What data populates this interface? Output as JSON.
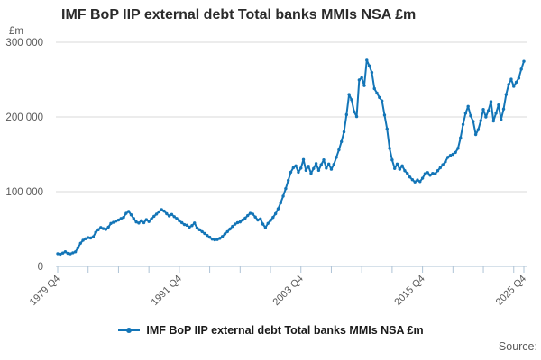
{
  "header": {
    "title": "IMF BoP IIP external debt Total banks MMIs NSA £m"
  },
  "legend": {
    "label": "IMF BoP IIP external debt Total banks MMIs NSA £m"
  },
  "source_label": "Source:",
  "colors": {
    "line": "#1375b7",
    "marker": "#1375b7",
    "grid": "#d9d9d9",
    "axis": "#aec3d6",
    "title_text": "#2b2b2b",
    "tick_text": "#595959",
    "legend_text": "#1a1a1a",
    "source_text": "#595959"
  },
  "chart_data": {
    "type": "line",
    "title": "IMF BoP IIP external debt Total banks MMIs NSA £m",
    "unit_label": "£m",
    "xlabel": "",
    "ylabel": "£m",
    "ylim": [
      0,
      300000
    ],
    "grid": "horizontal",
    "legend_position": "bottom",
    "x_frequency": "quarterly",
    "x_start": "1979 Q4",
    "x_end": "2025 Q4",
    "x_tick_labels": [
      "1979 Q4",
      "1991 Q4",
      "2003 Q4",
      "2015 Q4",
      "2025 Q4"
    ],
    "x_tick_label_indices": [
      0,
      48,
      96,
      144,
      184
    ],
    "minor_tick_every_quarters": 12,
    "y_ticks": [
      0,
      100000,
      200000,
      300000
    ],
    "y_tick_labels": [
      "0",
      "100 000",
      "200 000",
      "300 000"
    ],
    "series_name": "IMF BoP IIP external debt Total banks MMIs NSA £m",
    "values": [
      17000,
      16300,
      17800,
      19600,
      17400,
      16800,
      18200,
      19500,
      25000,
      31000,
      35000,
      37000,
      38500,
      38000,
      39500,
      45500,
      49000,
      52000,
      50500,
      49500,
      52500,
      57500,
      59000,
      60500,
      62000,
      64000,
      65500,
      71000,
      73500,
      69000,
      64000,
      59500,
      58000,
      61000,
      58500,
      62500,
      60000,
      63500,
      67000,
      70000,
      73000,
      76000,
      74000,
      70500,
      67500,
      69500,
      66500,
      64000,
      61000,
      58500,
      56000,
      55000,
      52500,
      54500,
      58000,
      51500,
      49000,
      46500,
      44000,
      41500,
      39000,
      36500,
      35500,
      36000,
      37500,
      40000,
      43500,
      46500,
      50000,
      53500,
      56500,
      58500,
      59500,
      62000,
      64500,
      68000,
      71000,
      70000,
      66000,
      62000,
      63500,
      56500,
      52000,
      57500,
      61500,
      65500,
      70500,
      77000,
      85000,
      94000,
      104000,
      115000,
      126000,
      132000,
      134500,
      126000,
      131500,
      143000,
      128500,
      134000,
      124500,
      131000,
      137500,
      128500,
      136000,
      142500,
      131500,
      137000,
      130000,
      136500,
      146000,
      156000,
      167000,
      180000,
      203000,
      230000,
      223000,
      207000,
      200500,
      249500,
      252500,
      242000,
      276000,
      268500,
      259500,
      238000,
      232000,
      226000,
      221500,
      202500,
      184000,
      158000,
      142500,
      131000,
      137000,
      130000,
      134500,
      128000,
      124500,
      119500,
      116000,
      113000,
      115500,
      113500,
      118000,
      124000,
      125500,
      122000,
      124500,
      124000,
      128000,
      132000,
      136000,
      140000,
      146000,
      148500,
      150000,
      152500,
      158000,
      172000,
      190000,
      205000,
      214000,
      201500,
      194000,
      176500,
      183000,
      195000,
      210000,
      200000,
      208500,
      220500,
      194500,
      205000,
      216000,
      196500,
      210500,
      230000,
      243500,
      250500,
      241000,
      246500,
      252000,
      264000,
      274500
    ]
  }
}
